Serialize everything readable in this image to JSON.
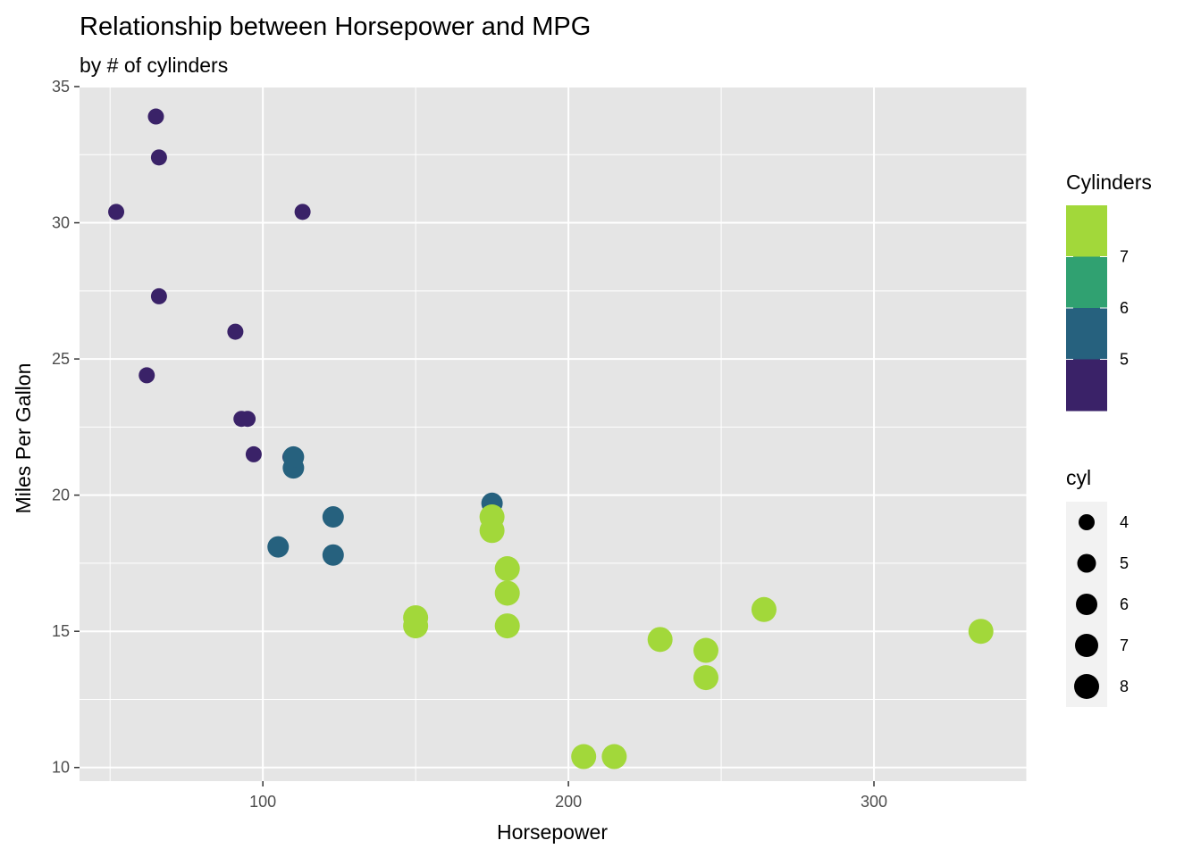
{
  "chart_data": {
    "type": "scatter",
    "title": "Relationship between Horsepower and MPG",
    "subtitle": "by # of cylinders",
    "xlabel": "Horsepower",
    "ylabel": "Miles Per Gallon",
    "xlim": [
      40,
      350
    ],
    "ylim": [
      9.5,
      35
    ],
    "x_ticks": [
      100,
      200,
      300
    ],
    "y_ticks": [
      10,
      15,
      20,
      25,
      30,
      35
    ],
    "grid": true,
    "legend_position": "right",
    "colors": {
      "panel_bg": "#e5e5e5",
      "grid": "#ffffff",
      "cyl4": "#3a2268",
      "cyl6": "#26617e",
      "cyl8": "#a2d83a",
      "legend_key_bg": "#f2f2f2"
    },
    "series": [
      {
        "cyl": 4,
        "points": [
          {
            "x": 93,
            "y": 22.8
          },
          {
            "x": 62,
            "y": 24.4
          },
          {
            "x": 95,
            "y": 22.8
          },
          {
            "x": 66,
            "y": 32.4
          },
          {
            "x": 52,
            "y": 30.4
          },
          {
            "x": 65,
            "y": 33.9
          },
          {
            "x": 97,
            "y": 21.5
          },
          {
            "x": 66,
            "y": 27.3
          },
          {
            "x": 91,
            "y": 26.0
          },
          {
            "x": 113,
            "y": 30.4
          },
          {
            "x": 109,
            "y": 21.4
          }
        ]
      },
      {
        "cyl": 6,
        "points": [
          {
            "x": 110,
            "y": 21.0
          },
          {
            "x": 110,
            "y": 21.4
          },
          {
            "x": 105,
            "y": 18.1
          },
          {
            "x": 123,
            "y": 19.2
          },
          {
            "x": 123,
            "y": 17.8
          },
          {
            "x": 175,
            "y": 19.7
          }
        ]
      },
      {
        "cyl": 8,
        "points": [
          {
            "x": 175,
            "y": 18.7
          },
          {
            "x": 245,
            "y": 14.3
          },
          {
            "x": 180,
            "y": 16.4
          },
          {
            "x": 180,
            "y": 17.3
          },
          {
            "x": 180,
            "y": 15.2
          },
          {
            "x": 205,
            "y": 10.4
          },
          {
            "x": 215,
            "y": 10.4
          },
          {
            "x": 230,
            "y": 14.7
          },
          {
            "x": 150,
            "y": 15.5
          },
          {
            "x": 150,
            "y": 15.2
          },
          {
            "x": 245,
            "y": 13.3
          },
          {
            "x": 175,
            "y": 19.2
          },
          {
            "x": 264,
            "y": 15.8
          },
          {
            "x": 335,
            "y": 15.0
          }
        ]
      }
    ],
    "color_legend": {
      "title": "Cylinders",
      "labels": [
        "7",
        "6",
        "5"
      ],
      "colors": [
        "#a2d83a",
        "#30a171",
        "#26617e",
        "#3a2268"
      ]
    },
    "size_legend": {
      "title": "cyl",
      "labels": [
        "4",
        "5",
        "6",
        "7",
        "8"
      ]
    }
  }
}
